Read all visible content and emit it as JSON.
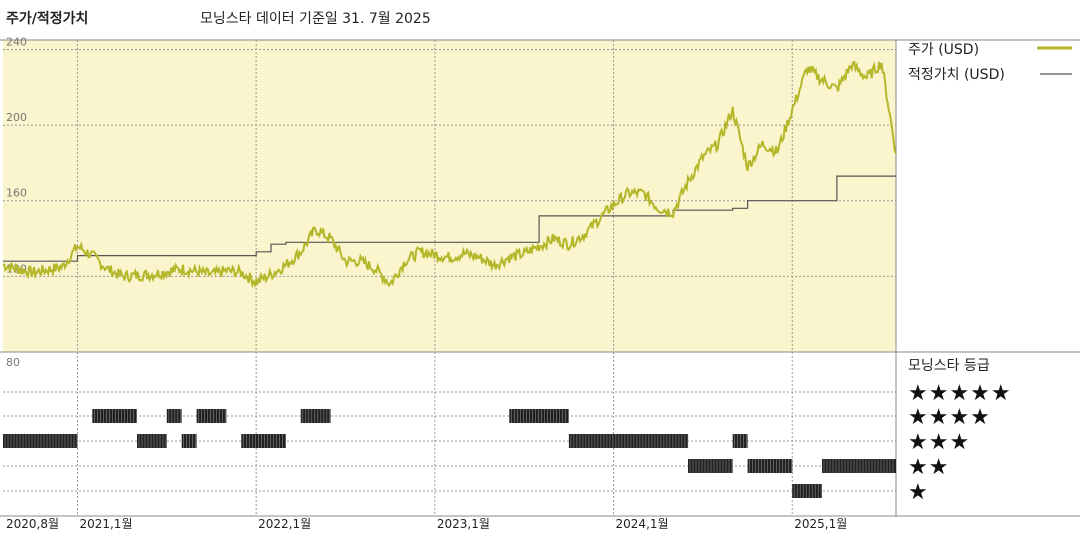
{
  "header": {
    "chart_title": "주가/적정가치",
    "data_note": "모닝스타 데이터 기준일 31. 7월 2025"
  },
  "colors": {
    "price_line": "#b5b72a",
    "fair_value_line": "#555555",
    "plot_background": "#faf5cc",
    "grid": "#999999",
    "rating_bar": "#222222"
  },
  "legend": {
    "price_label": "주가 (USD)",
    "fair_value_label": "적정가치 (USD)",
    "rating_label": "모닝스타 등급"
  },
  "rating_levels": [
    "★★★★★",
    "★★★★",
    "★★★",
    "★★",
    "★"
  ],
  "chart_data": {
    "type": "line",
    "y_axis": {
      "ticks": [
        240,
        200,
        160,
        120,
        80
      ],
      "ylim": [
        80,
        245
      ],
      "grid": true
    },
    "x_axis": {
      "start": "2020-08",
      "end": "2025-07",
      "tick_labels": [
        "2020,8월",
        "2021,1월",
        "2022,1월",
        "2023,1월",
        "2024,1월",
        "2025,1월"
      ]
    },
    "series": [
      {
        "name": "주가 (USD)",
        "points": [
          [
            "2020-08",
            126
          ],
          [
            "2020-10",
            122
          ],
          [
            "2020-12",
            125
          ],
          [
            "2021-01",
            136
          ],
          [
            "2021-02",
            131
          ],
          [
            "2021-03",
            124
          ],
          [
            "2021-04",
            120
          ],
          [
            "2021-06",
            121
          ],
          [
            "2021-08",
            124
          ],
          [
            "2021-10",
            121
          ],
          [
            "2021-11",
            123
          ],
          [
            "2021-12",
            122
          ],
          [
            "2022-01",
            117
          ],
          [
            "2022-02",
            121
          ],
          [
            "2022-03",
            126
          ],
          [
            "2022-04",
            133
          ],
          [
            "2022-05",
            145
          ],
          [
            "2022-06",
            140
          ],
          [
            "2022-07",
            128
          ],
          [
            "2022-08",
            128
          ],
          [
            "2022-09",
            124
          ],
          [
            "2022-10",
            116
          ],
          [
            "2022-11",
            128
          ],
          [
            "2022-12",
            133
          ],
          [
            "2023-02",
            130
          ],
          [
            "2023-03",
            132
          ],
          [
            "2023-04",
            130
          ],
          [
            "2023-05",
            126
          ],
          [
            "2023-06",
            130
          ],
          [
            "2023-07",
            132
          ],
          [
            "2023-08",
            136
          ],
          [
            "2023-09",
            140
          ],
          [
            "2023-10",
            137
          ],
          [
            "2023-11",
            142
          ],
          [
            "2023-12",
            150
          ],
          [
            "2024-01",
            158
          ],
          [
            "2024-02",
            164
          ],
          [
            "2024-03",
            164
          ],
          [
            "2024-04",
            156
          ],
          [
            "2024-05",
            154
          ],
          [
            "2024-06",
            170
          ],
          [
            "2024-07",
            183
          ],
          [
            "2024-08",
            190
          ],
          [
            "2024-09",
            208
          ],
          [
            "2024-10",
            178
          ],
          [
            "2024-11",
            190
          ],
          [
            "2024-12",
            186
          ],
          [
            "2025-01",
            208
          ],
          [
            "2025-02",
            230
          ],
          [
            "2025-03",
            224
          ],
          [
            "2025-04",
            219
          ],
          [
            "2025-05",
            232
          ],
          [
            "2025-06",
            225
          ],
          [
            "2025-07",
            233
          ],
          [
            "2025-07-31",
            185
          ]
        ]
      },
      {
        "name": "적정가치 (USD)",
        "step_points": [
          [
            "2020-08",
            128
          ],
          [
            "2021-01",
            131
          ],
          [
            "2022-01",
            133
          ],
          [
            "2022-02",
            137
          ],
          [
            "2022-03",
            138
          ],
          [
            "2022-06",
            138
          ],
          [
            "2023-08",
            152
          ],
          [
            "2024-04",
            152
          ],
          [
            "2024-05",
            155
          ],
          [
            "2024-09",
            156
          ],
          [
            "2024-10",
            160
          ],
          [
            "2025-03",
            160
          ],
          [
            "2025-04",
            173
          ],
          [
            "2025-07-31",
            173
          ]
        ]
      }
    ],
    "rating_periods": [
      {
        "stars": 3,
        "from": "2020-08",
        "to": "2021-01"
      },
      {
        "stars": 4,
        "from": "2021-02",
        "to": "2021-05"
      },
      {
        "stars": 3,
        "from": "2021-05",
        "to": "2021-07"
      },
      {
        "stars": 4,
        "from": "2021-07",
        "to": "2021-08"
      },
      {
        "stars": 3,
        "from": "2021-08",
        "to": "2021-09"
      },
      {
        "stars": 4,
        "from": "2021-09",
        "to": "2021-11"
      },
      {
        "stars": 3,
        "from": "2021-12",
        "to": "2022-03"
      },
      {
        "stars": 4,
        "from": "2022-04",
        "to": "2022-06"
      },
      {
        "stars": 4,
        "from": "2023-06",
        "to": "2023-10"
      },
      {
        "stars": 3,
        "from": "2023-10",
        "to": "2024-06"
      },
      {
        "stars": 2,
        "from": "2024-06",
        "to": "2024-09"
      },
      {
        "stars": 3,
        "from": "2024-09",
        "to": "2024-10"
      },
      {
        "stars": 2,
        "from": "2024-10",
        "to": "2025-01"
      },
      {
        "stars": 1,
        "from": "2025-01",
        "to": "2025-03"
      },
      {
        "stars": 2,
        "from": "2025-03",
        "to": "2025-07-31"
      }
    ]
  }
}
